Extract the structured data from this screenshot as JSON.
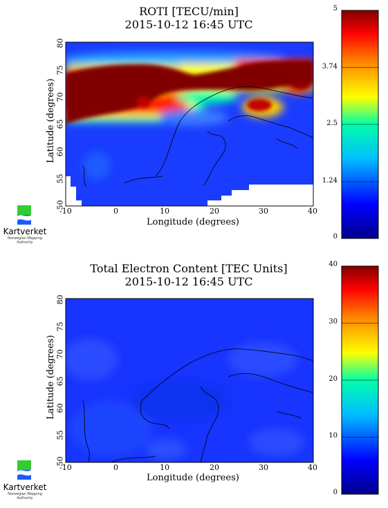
{
  "chart_data": [
    {
      "type": "heatmap",
      "title": "ROTI [TECU/min]",
      "subtitle": "2015-10-12 16:45 UTC",
      "xlabel": "Longitude (degrees)",
      "ylabel": "Latitude (degrees)",
      "xlim": [
        -10,
        40
      ],
      "ylim": [
        50,
        80
      ],
      "xticks": [
        "-10",
        "0",
        "10",
        "20",
        "30",
        "40"
      ],
      "yticks": [
        "50",
        "55",
        "60",
        "65",
        "70",
        "75",
        "80"
      ],
      "colorbar": {
        "min": 0,
        "max": 5,
        "ticks": [
          "5",
          "3.74",
          "2.5",
          "1.24",
          "0"
        ],
        "tick_values": [
          5,
          3.74,
          2.5,
          1.24,
          0
        ]
      }
    },
    {
      "type": "heatmap",
      "title": "Total Electron Content [TEC Units]",
      "subtitle": "2015-10-12 16:45 UTC",
      "xlabel": "Longitude (degrees)",
      "ylabel": "Latitude (degrees)",
      "xlim": [
        -10,
        40
      ],
      "ylim": [
        50,
        80
      ],
      "xticks": [
        "-10",
        "0",
        "10",
        "20",
        "30",
        "40"
      ],
      "yticks": [
        "50",
        "55",
        "60",
        "65",
        "70",
        "75",
        "80"
      ],
      "colorbar": {
        "min": 0,
        "max": 40,
        "ticks": [
          "40",
          "30",
          "20",
          "10",
          "0"
        ],
        "tick_values": [
          40,
          30,
          20,
          10,
          0
        ]
      }
    }
  ],
  "logo": {
    "name": "Kartverket",
    "sub1": "Norwegian Mapping",
    "sub2": "Authority"
  },
  "colors": {
    "high": "#800000",
    "mid": "#ffff00",
    "low": "#00008b",
    "base_blue": "#1a3cff"
  }
}
